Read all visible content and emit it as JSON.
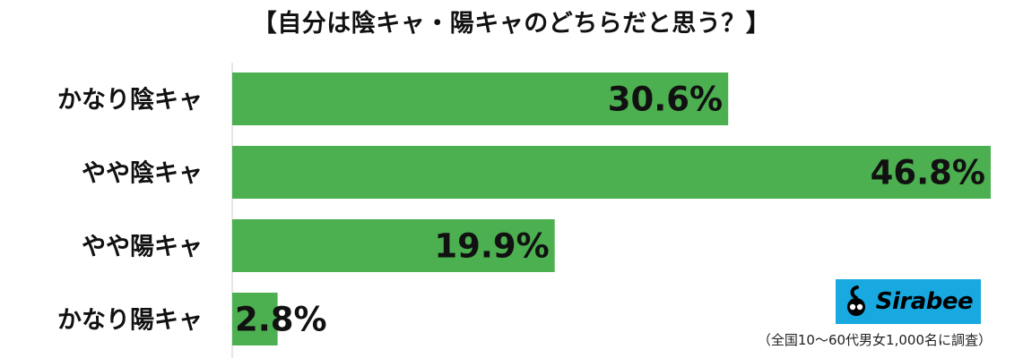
{
  "chart_data": {
    "type": "bar",
    "orientation": "horizontal",
    "title": "【自分は陰キャ・陽キャのどちらだと思う？】",
    "categories": [
      "かなり陰キャ",
      "やや陰キャ",
      "やや陽キャ",
      "かなり陽キャ"
    ],
    "values": [
      30.6,
      46.8,
      19.9,
      2.8
    ],
    "value_labels": [
      "30.6%",
      "46.8%",
      "19.9%",
      "2.8%"
    ],
    "xlim": [
      0,
      46.8
    ],
    "grid": false,
    "bar_color": "#4caf50",
    "axis_color": "#cccccc"
  },
  "logo": {
    "text": "Sirabee",
    "background_color": "#17a9e0"
  },
  "source_note": "（全国10〜60代男女1,000名に調査）"
}
